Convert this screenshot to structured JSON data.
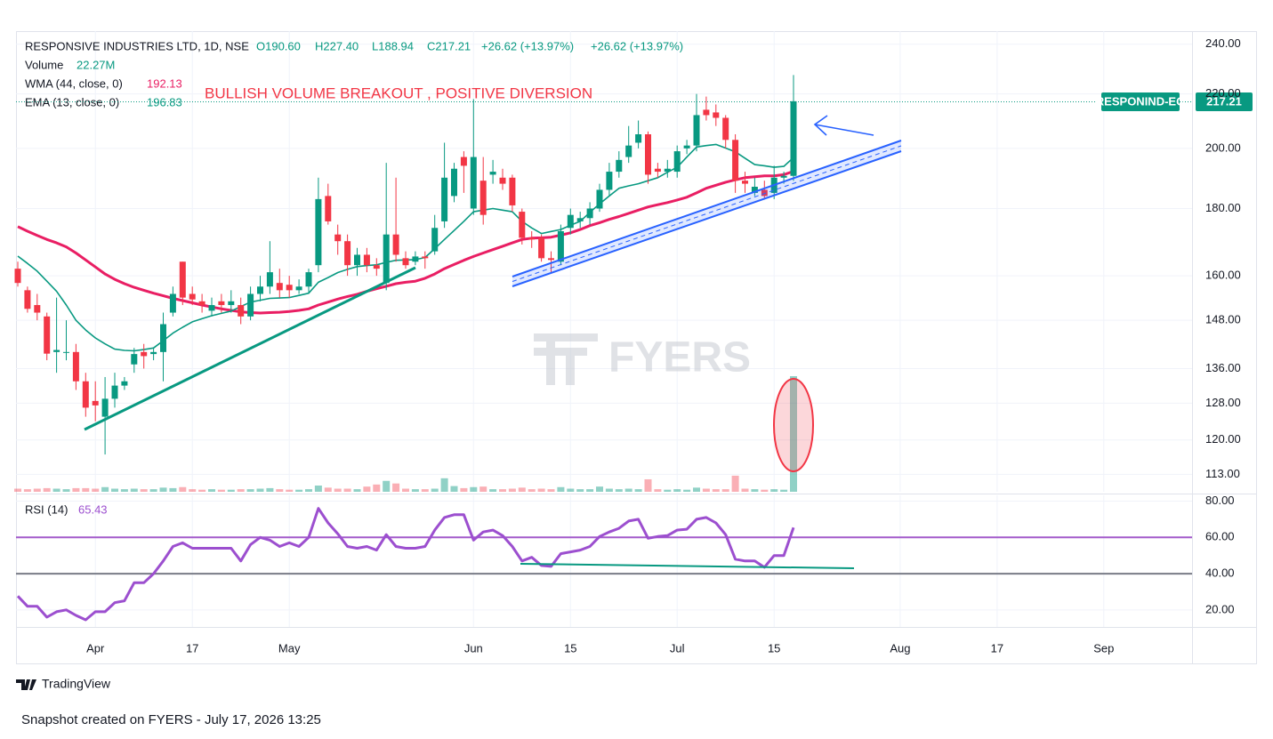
{
  "chart_data": {
    "type": "candlestick",
    "title": "RESPONSIVE INDUSTRIES LTD, 1D, NSE",
    "ohlc_legend": [
      "O190.60",
      "H227.40",
      "L188.94",
      "C217.21",
      "+26.62 (+13.97%)",
      "+26.62 (+13.97%)"
    ],
    "annotation": "BULLISH VOLUME BREAKOUT , POSITIVE DIVERSION",
    "symbol_label": "RESPONIND-EQ",
    "last_price_label": "217.21",
    "watermark": "FYERS",
    "brand": "TradingView",
    "footer": "Snapshot created on FYERS - July 17, 2026 13:25",
    "log_scale": true,
    "grid": true,
    "up_color": "#089981",
    "down_color": "#f23645",
    "ylim": [
      109.6,
      245.6
    ],
    "yticks": [
      {
        "value": 240,
        "label": "240.00"
      },
      {
        "value": 220,
        "label": "220.00"
      },
      {
        "value": 200,
        "label": "200.00"
      },
      {
        "value": 180,
        "label": "180.00"
      },
      {
        "value": 160,
        "label": "160.00"
      },
      {
        "value": 148,
        "label": "148.00"
      },
      {
        "value": 136,
        "label": "136.00"
      },
      {
        "value": 128,
        "label": "128.00"
      },
      {
        "value": 120,
        "label": "120.00"
      },
      {
        "value": 113,
        "label": "113.00"
      }
    ],
    "categories": [
      null,
      null,
      null,
      null,
      null,
      null,
      null,
      null,
      "Apr",
      null,
      null,
      null,
      null,
      null,
      null,
      null,
      null,
      null,
      "17",
      null,
      null,
      null,
      null,
      null,
      null,
      null,
      null,
      null,
      "May",
      null,
      null,
      null,
      null,
      null,
      null,
      null,
      null,
      null,
      null,
      null,
      null,
      null,
      null,
      null,
      null,
      null,
      null,
      "Jun",
      null,
      null,
      null,
      null,
      null,
      null,
      null,
      null,
      null,
      "15",
      null,
      null,
      null,
      null,
      null,
      null,
      null,
      null,
      null,
      null,
      "Jul",
      null,
      null,
      null,
      null,
      null,
      null,
      null,
      null,
      null,
      "15",
      null,
      null,
      null,
      null,
      null,
      null,
      null,
      null,
      null,
      null,
      null,
      null,
      "Aug",
      null,
      null,
      null,
      null,
      null,
      null,
      null,
      null,
      null,
      "17",
      null,
      null,
      null,
      null,
      null,
      null,
      null,
      null,
      null,
      null,
      "Sep",
      null,
      null,
      null,
      null,
      null,
      null,
      null,
      null,
      null
    ],
    "candles": [
      [
        162,
        164,
        157,
        158
      ],
      [
        156,
        157,
        150,
        151
      ],
      [
        152,
        155,
        148,
        150
      ],
      [
        149,
        150,
        138,
        139.6
      ],
      [
        140,
        154,
        135,
        140.5
      ],
      [
        140,
        148,
        138,
        140
      ],
      [
        140,
        142,
        131,
        133
      ],
      [
        133,
        135,
        125,
        127
      ],
      [
        128.5,
        133,
        124,
        127.5
      ],
      [
        125,
        134,
        117,
        129
      ],
      [
        129,
        135,
        127,
        132
      ],
      [
        132,
        134,
        131,
        133
      ],
      [
        137,
        141,
        135,
        139.5
      ],
      [
        140,
        142,
        136,
        139
      ],
      [
        139.5,
        141,
        138,
        140
      ],
      [
        140,
        150,
        133,
        147
      ],
      [
        150,
        157,
        149,
        155
      ],
      [
        164,
        164,
        152,
        154
      ],
      [
        155,
        157,
        152,
        153.5
      ],
      [
        153,
        155,
        150,
        152
      ],
      [
        150.5,
        154,
        149,
        152
      ],
      [
        153,
        155,
        150,
        152
      ],
      [
        152,
        156,
        150,
        153
      ],
      [
        152,
        154,
        147,
        149
      ],
      [
        149,
        157,
        148,
        155
      ],
      [
        155,
        160,
        153,
        157
      ],
      [
        157,
        170,
        155,
        161
      ],
      [
        158,
        162,
        154,
        156
      ],
      [
        157.5,
        160,
        154,
        156
      ],
      [
        156,
        159,
        155,
        157
      ],
      [
        157,
        162,
        155,
        161
      ],
      [
        163,
        190,
        161,
        183
      ],
      [
        184,
        188,
        175,
        176
      ],
      [
        172,
        175,
        166,
        170
      ],
      [
        170,
        172,
        160,
        163
      ],
      [
        163,
        168,
        160,
        166
      ],
      [
        166,
        168,
        161,
        163
      ],
      [
        163,
        165,
        160,
        162
      ],
      [
        158,
        195,
        156,
        172
      ],
      [
        172,
        190,
        164,
        166
      ],
      [
        165,
        167,
        162,
        163
      ],
      [
        164,
        167,
        163,
        165.5
      ],
      [
        165.5,
        167,
        162,
        165
      ],
      [
        167,
        178,
        166,
        174
      ],
      [
        176,
        202,
        174,
        190
      ],
      [
        184,
        195,
        182,
        193
      ],
      [
        197,
        199,
        185,
        194
      ],
      [
        180,
        218,
        178,
        197
      ],
      [
        189,
        197,
        175,
        178
      ],
      [
        191,
        196,
        188,
        192
      ],
      [
        190,
        193,
        186,
        188
      ],
      [
        190,
        191,
        179,
        181
      ],
      [
        179,
        180,
        169,
        171
      ],
      [
        171,
        173,
        168,
        170.5
      ],
      [
        171,
        172,
        164,
        165
      ],
      [
        165,
        167,
        161,
        164.5
      ],
      [
        164,
        175,
        163,
        173
      ],
      [
        174,
        180,
        172,
        178
      ],
      [
        176,
        179,
        174,
        177
      ],
      [
        177,
        182,
        175,
        180
      ],
      [
        180,
        188,
        179,
        186
      ],
      [
        186,
        195,
        184,
        192
      ],
      [
        192,
        199,
        190,
        196
      ],
      [
        197,
        208,
        195,
        201
      ],
      [
        202,
        210,
        200,
        205
      ],
      [
        205,
        206,
        188,
        191
      ],
      [
        193,
        195,
        190,
        192
      ],
      [
        192,
        196,
        190,
        193
      ],
      [
        192,
        201,
        190,
        199
      ],
      [
        200,
        203,
        198,
        201
      ],
      [
        201,
        220,
        199,
        212
      ],
      [
        214,
        219,
        210,
        212
      ],
      [
        213,
        216,
        208,
        211
      ],
      [
        211,
        212,
        200,
        203
      ],
      [
        203,
        205,
        185,
        189
      ],
      [
        189,
        192,
        185,
        188
      ],
      [
        185,
        190,
        184,
        187
      ],
      [
        186,
        189,
        183,
        184
      ],
      [
        185,
        194,
        183,
        190
      ],
      [
        190,
        192,
        188,
        190.59
      ],
      [
        190.6,
        227.4,
        188.94,
        217.21
      ],
      null,
      null,
      null,
      null,
      null,
      null,
      null,
      null,
      null,
      null,
      null,
      null,
      null,
      null,
      null,
      null,
      null,
      null,
      null,
      null,
      null,
      null,
      null,
      null,
      null,
      null,
      null,
      null,
      null,
      null,
      null,
      null,
      null,
      null,
      null,
      null,
      null,
      null,
      null,
      null,
      null
    ],
    "volume": {
      "name": "Volume",
      "legend_value": "22.27M",
      "values": [
        0.6,
        0.5,
        0.6,
        0.7,
        0.6,
        0.5,
        0.7,
        0.7,
        0.6,
        0.9,
        0.6,
        0.5,
        0.6,
        0.5,
        0.5,
        0.8,
        0.7,
        0.9,
        0.5,
        0.4,
        0.5,
        0.4,
        0.4,
        0.5,
        0.5,
        0.6,
        0.7,
        0.5,
        0.4,
        0.4,
        0.5,
        1.2,
        0.8,
        0.6,
        0.6,
        0.5,
        1.0,
        1.4,
        2.1,
        1.6,
        0.6,
        0.5,
        0.5,
        0.6,
        2.6,
        1.1,
        0.7,
        0.9,
        1.0,
        0.5,
        0.5,
        0.6,
        0.8,
        0.5,
        0.6,
        0.5,
        0.9,
        0.6,
        0.5,
        0.5,
        1.0,
        0.6,
        0.5,
        0.6,
        0.5,
        2.4,
        0.5,
        0.4,
        0.5,
        0.4,
        0.8,
        0.6,
        0.5,
        0.5,
        3.1,
        0.6,
        0.5,
        0.4,
        0.5,
        0.4,
        22.27,
        null,
        null,
        null,
        null,
        null,
        null,
        null,
        null,
        null,
        null,
        null,
        null,
        null,
        null,
        null,
        null,
        null,
        null,
        null,
        null,
        null,
        null,
        null,
        null,
        null,
        null,
        null,
        null,
        null,
        null,
        null,
        null,
        null,
        null,
        null,
        null,
        null,
        null,
        null,
        null,
        null
      ]
    },
    "overlays": [
      {
        "name": "WMA (44, close, 0)",
        "color": "#e91e63",
        "values": [
          174.4,
          173,
          171.7,
          170.5,
          169.5,
          168.3,
          166.5,
          164.5,
          162.5,
          160.5,
          159,
          157.8,
          156.8,
          156,
          155.2,
          154.5,
          153.8,
          153.2,
          152.6,
          152,
          151.5,
          151,
          150.6,
          150.2,
          150,
          149.9,
          150,
          150.1,
          150.3,
          150.6,
          151,
          152,
          152.8,
          153.6,
          154.3,
          154.9,
          155.7,
          156.4,
          157.1,
          157.8,
          158.2,
          158.5,
          159.3,
          160.5,
          162,
          163.2,
          164.4,
          165.5,
          166.5,
          167.5,
          168.5,
          169.5,
          170.5,
          170.9,
          171,
          171.2,
          171.8,
          172.5,
          173.5,
          174.7,
          175.6,
          176.6,
          177.5,
          178.5,
          179.5,
          180.5,
          181.2,
          181.9,
          182.7,
          183.6,
          185,
          186.5,
          187.5,
          188.5,
          189.3,
          190,
          190.3,
          190.6,
          190.6,
          191,
          192.13,
          null,
          null,
          null,
          null,
          null,
          null,
          null,
          null,
          null,
          null,
          null,
          null,
          null,
          null,
          null,
          null,
          null,
          null,
          null,
          null,
          null,
          null,
          null,
          null,
          null,
          null,
          null,
          null,
          null,
          null,
          null,
          null,
          null,
          null,
          null,
          null,
          null,
          null,
          null,
          null,
          null
        ]
      },
      {
        "name": "EMA (13, close, 0)",
        "color": "#089981",
        "values": [
          165.6,
          163.5,
          161.3,
          158.5,
          155.7,
          152,
          148,
          145.5,
          143.5,
          142,
          140.7,
          140.4,
          140.3,
          140.6,
          141,
          142.8,
          144.7,
          146.2,
          147.6,
          148.4,
          149.2,
          149.8,
          150.4,
          151.6,
          152.8,
          153.3,
          153.8,
          153.9,
          154,
          154.6,
          155.2,
          158.2,
          159.5,
          160.9,
          161.8,
          162.6,
          162.9,
          163.1,
          163.8,
          164.4,
          164.5,
          164.6,
          165.2,
          167.8,
          170.5,
          173.2,
          176,
          179,
          179.5,
          180,
          179.5,
          179,
          176,
          174,
          172.3,
          172.9,
          173.5,
          174.8,
          176,
          178.8,
          181.5,
          184,
          186.5,
          187.3,
          188,
          189,
          190,
          191.8,
          193.5,
          197,
          200.5,
          201,
          201.4,
          200.1,
          198.8,
          196.6,
          194.4,
          194,
          193.5,
          193.8,
          196.83,
          null,
          null,
          null,
          null,
          null,
          null,
          null,
          null,
          null,
          null,
          null,
          null,
          null,
          null,
          null,
          null,
          null,
          null,
          null,
          null,
          null,
          null,
          null,
          null,
          null,
          null,
          null,
          null,
          null,
          null,
          null,
          null,
          null,
          null,
          null,
          null,
          null,
          null,
          null,
          null,
          null
        ]
      }
    ],
    "rsi": {
      "name": "RSI (14)",
      "color": "#9c4fcf",
      "ylim": [
        10.6,
        83.2
      ],
      "yticks": [
        {
          "value": 80,
          "label": "80.00"
        },
        {
          "value": 60,
          "label": "60.00"
        },
        {
          "value": 40,
          "label": "40.00"
        },
        {
          "value": 20,
          "label": "20.00"
        }
      ],
      "levels": [
        {
          "value": 60,
          "color": "#a35bcb"
        },
        {
          "value": 40,
          "color": "#787b86"
        }
      ],
      "values": [
        27.6,
        22,
        22,
        16,
        19,
        20,
        17,
        14.5,
        19,
        19,
        24,
        25,
        35,
        35,
        40,
        47,
        55,
        57,
        54,
        54,
        54,
        54,
        54,
        47,
        56,
        60,
        58.5,
        55,
        57,
        55,
        60,
        76,
        68,
        62,
        55,
        54,
        55,
        53,
        61.5,
        55,
        54,
        54,
        55,
        64,
        71,
        72.5,
        72.5,
        58.5,
        63,
        64,
        61,
        55,
        47,
        49,
        44.5,
        44,
        51,
        52,
        53,
        55,
        60.5,
        63,
        65,
        69,
        70,
        59.5,
        60.5,
        61,
        64,
        64.5,
        70,
        71,
        68,
        61.5,
        48,
        47,
        47,
        43.5,
        50,
        50,
        65.43,
        null,
        null,
        null,
        null,
        null,
        null,
        null,
        null,
        null,
        null,
        null,
        null,
        null,
        null,
        null,
        null,
        null,
        null,
        null,
        null,
        null,
        null,
        null,
        null,
        null,
        null,
        null,
        null,
        null,
        null,
        null,
        null,
        null,
        null,
        null,
        null,
        null,
        null,
        null,
        null,
        null
      ]
    }
  }
}
